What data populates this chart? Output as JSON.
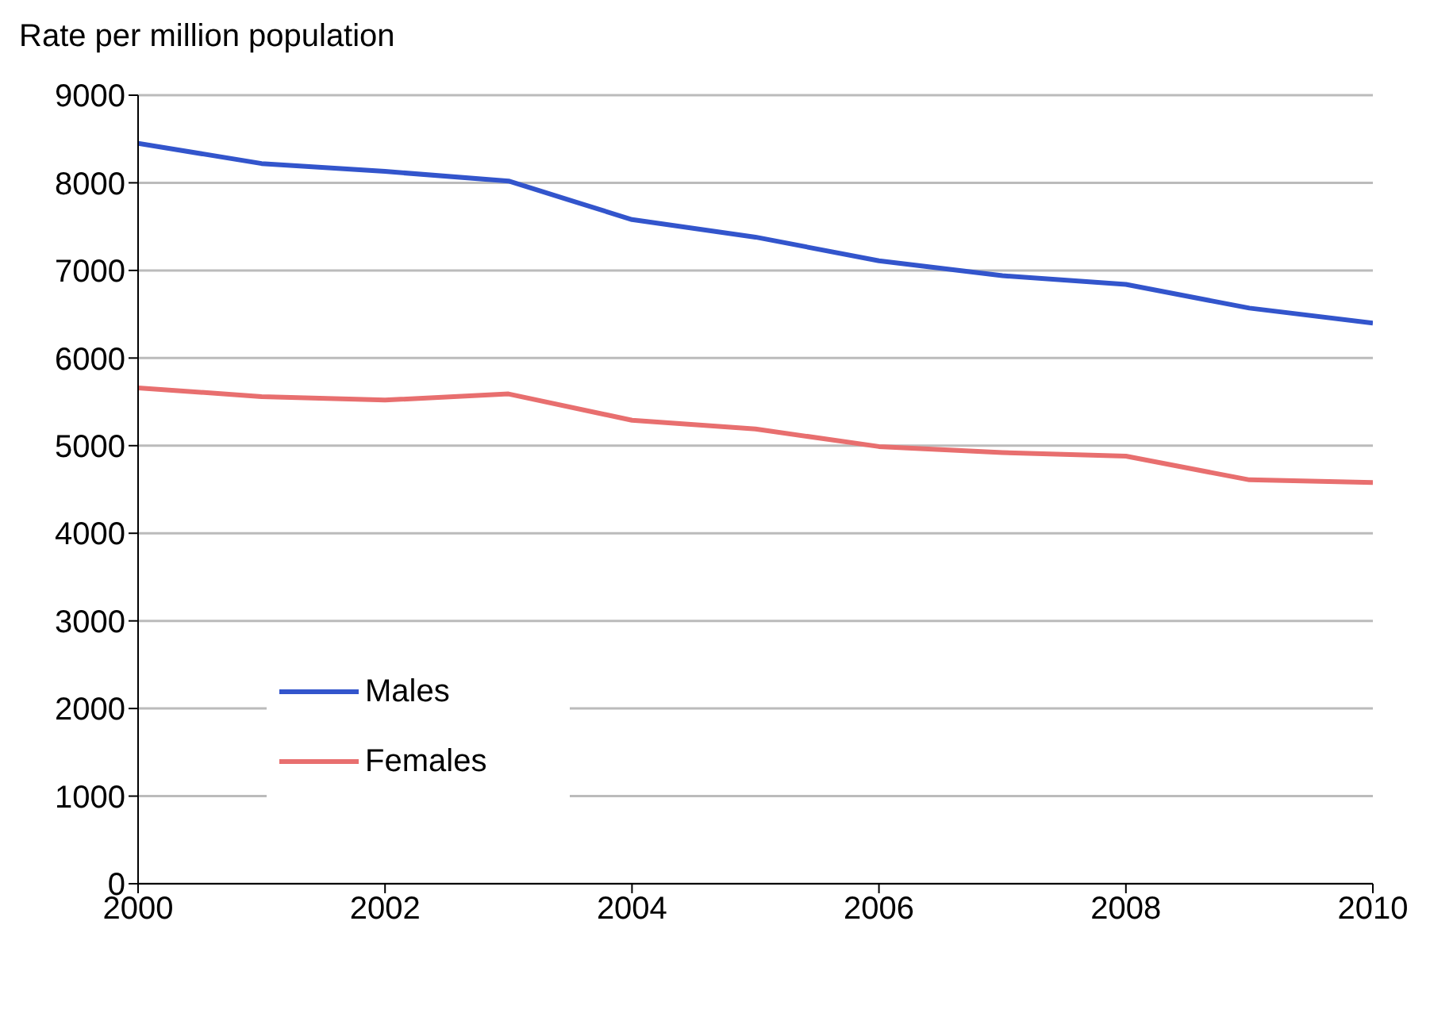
{
  "chart_data": {
    "type": "line",
    "ylabel": "Rate per million population",
    "x": [
      2000,
      2001,
      2002,
      2003,
      2004,
      2005,
      2006,
      2007,
      2008,
      2009,
      2010
    ],
    "series": [
      {
        "name": "Males",
        "color": "#3355cc",
        "values": [
          8450,
          8220,
          8130,
          8020,
          7580,
          7380,
          7110,
          6940,
          6840,
          6570,
          6400
        ]
      },
      {
        "name": "Females",
        "color": "#e86f6f",
        "values": [
          5660,
          5560,
          5520,
          5590,
          5290,
          5190,
          4990,
          4920,
          4880,
          4610,
          4580
        ]
      }
    ],
    "xlim": [
      2000,
      2010
    ],
    "xticks": [
      2000,
      2002,
      2004,
      2006,
      2008,
      2010
    ],
    "ylim": [
      0,
      9000
    ],
    "yticks": [
      0,
      1000,
      2000,
      3000,
      4000,
      5000,
      6000,
      7000,
      8000,
      9000
    ],
    "grid": "y",
    "legend": "bottom left",
    "marker": "none",
    "line_style": "solid"
  }
}
